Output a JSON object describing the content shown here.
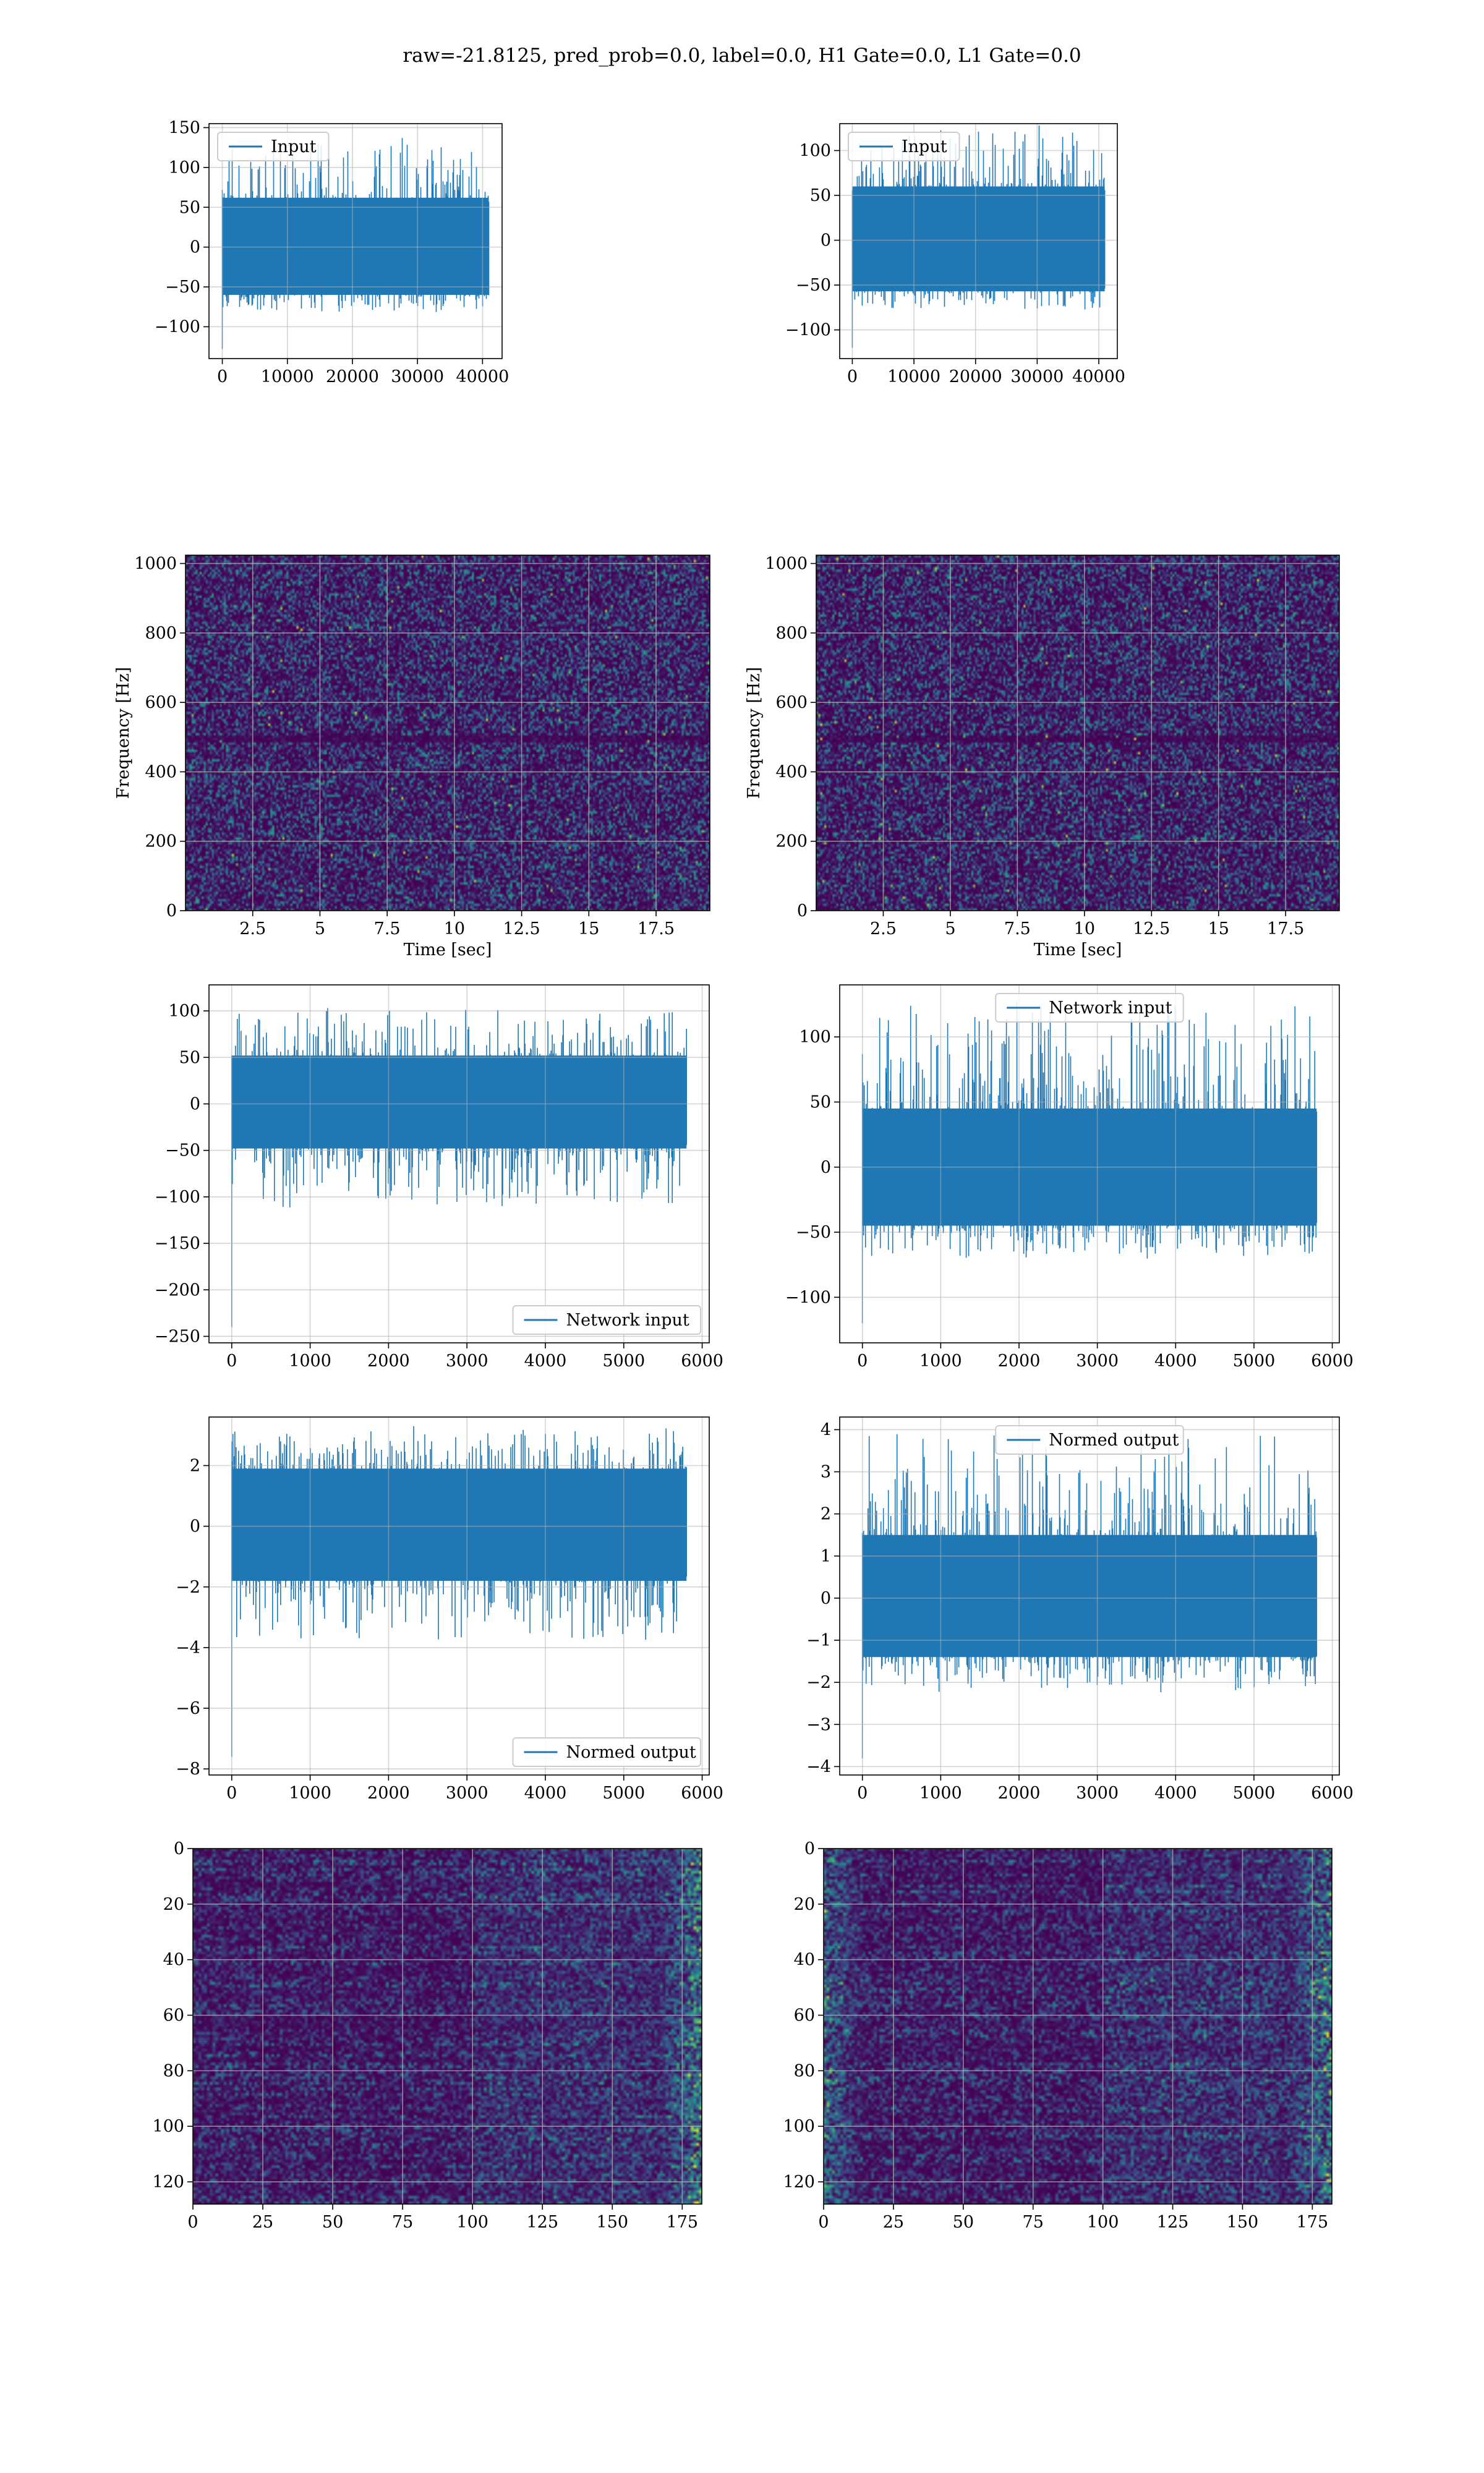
{
  "figure": {
    "suptitle": "raw=-21.8125, pred_prob=0.0, label=0.0, H1 Gate=0.0, L1 Gate=0.0",
    "background": "#ffffff",
    "line_color": "#1f77b4",
    "grid_color": "#b0b0b0",
    "colormap": "viridis"
  },
  "chart_data": [
    {
      "id": "input-h1",
      "type": "line",
      "legend": [
        "Input"
      ],
      "legend_loc": "upper left",
      "xlim": [
        -2048,
        43008
      ],
      "ylim": [
        -140,
        155
      ],
      "xticks": [
        0,
        10000,
        20000,
        30000,
        40000
      ],
      "yticks": [
        -100,
        -50,
        0,
        50,
        100,
        150
      ],
      "signal": {
        "start": 0,
        "end": 40960,
        "bulk": [
          -60,
          62
        ],
        "peak_max": 137,
        "peak_min": -128
      },
      "grid": true
    },
    {
      "id": "input-l1",
      "type": "line",
      "legend": [
        "Input"
      ],
      "legend_loc": "upper left",
      "xlim": [
        -2048,
        43008
      ],
      "ylim": [
        -132,
        130
      ],
      "xticks": [
        0,
        10000,
        20000,
        30000,
        40000
      ],
      "yticks": [
        -100,
        -50,
        0,
        50,
        100
      ],
      "signal": {
        "start": 0,
        "end": 40960,
        "bulk": [
          -57,
          60
        ],
        "peak_max": 128,
        "peak_min": -120
      },
      "grid": true
    },
    {
      "id": "spectrogram-h1",
      "type": "heatmap",
      "xlabel": "Time [sec]",
      "ylabel": "Frequency [Hz]",
      "xlim": [
        0,
        19.5
      ],
      "ylim": [
        0,
        1024
      ],
      "xticks": [
        2.5,
        5.0,
        7.5,
        10.0,
        12.5,
        15.0,
        17.5
      ],
      "yticks": [
        0,
        200,
        400,
        600,
        800,
        1000
      ],
      "dark_band_hz": 500,
      "grid": true
    },
    {
      "id": "spectrogram-l1",
      "type": "heatmap",
      "xlabel": "Time [sec]",
      "ylabel": "Frequency [Hz]",
      "xlim": [
        0,
        19.5
      ],
      "ylim": [
        0,
        1024
      ],
      "xticks": [
        2.5,
        5.0,
        7.5,
        10.0,
        12.5,
        15.0,
        17.5
      ],
      "yticks": [
        0,
        200,
        400,
        600,
        800,
        1000
      ],
      "dark_band_hz": 500,
      "grid": true
    },
    {
      "id": "network-input-h1",
      "type": "line",
      "legend": [
        "Network input"
      ],
      "legend_loc": "lower right",
      "xlim": [
        -290,
        6090
      ],
      "ylim": [
        -257,
        128
      ],
      "xticks": [
        0,
        1000,
        2000,
        3000,
        4000,
        5000,
        6000
      ],
      "yticks": [
        -250,
        -200,
        -150,
        -100,
        -50,
        0,
        50,
        100
      ],
      "signal": {
        "start": 0,
        "end": 5800,
        "bulk": [
          -48,
          52
        ],
        "peak_max": 103,
        "peak_min": -240
      },
      "grid": true
    },
    {
      "id": "network-input-l1",
      "type": "line",
      "legend": [
        "Network input"
      ],
      "legend_loc": "upper center",
      "xlim": [
        -290,
        6090
      ],
      "ylim": [
        -135,
        140
      ],
      "xticks": [
        0,
        1000,
        2000,
        3000,
        4000,
        5000,
        6000
      ],
      "yticks": [
        -100,
        -50,
        0,
        50,
        100
      ],
      "signal": {
        "start": 0,
        "end": 5800,
        "bulk": [
          -45,
          45
        ],
        "peak_max": 127,
        "peak_min": -120
      },
      "grid": true
    },
    {
      "id": "normed-output-h1",
      "type": "line",
      "legend": [
        "Normed output"
      ],
      "legend_loc": "lower right",
      "xlim": [
        -290,
        6090
      ],
      "ylim": [
        -8.2,
        3.6
      ],
      "xticks": [
        0,
        1000,
        2000,
        3000,
        4000,
        5000,
        6000
      ],
      "yticks": [
        -8,
        -6,
        -4,
        -2,
        0,
        2
      ],
      "signal": {
        "start": 0,
        "end": 5800,
        "bulk": [
          -1.8,
          1.9
        ],
        "peak_max": 3.3,
        "peak_min": -7.6
      },
      "grid": true
    },
    {
      "id": "normed-output-l1",
      "type": "line",
      "legend": [
        "Normed output"
      ],
      "legend_loc": "upper center",
      "xlim": [
        -290,
        6090
      ],
      "ylim": [
        -4.2,
        4.3
      ],
      "xticks": [
        0,
        1000,
        2000,
        3000,
        4000,
        5000,
        6000
      ],
      "yticks": [
        -4,
        -3,
        -2,
        -1,
        0,
        1,
        2,
        3,
        4
      ],
      "signal": {
        "start": 0,
        "end": 5800,
        "bulk": [
          -1.4,
          1.5
        ],
        "peak_max": 4.0,
        "peak_min": -3.8
      },
      "grid": true
    },
    {
      "id": "qtransform-h1",
      "type": "heatmap",
      "xlim": [
        0,
        182
      ],
      "ylim": [
        128,
        0
      ],
      "xticks": [
        0,
        25,
        50,
        75,
        100,
        125,
        150,
        175
      ],
      "yticks": [
        0,
        20,
        40,
        60,
        80,
        100,
        120
      ],
      "bright_edge": "right",
      "grid": true
    },
    {
      "id": "qtransform-l1",
      "type": "heatmap",
      "xlim": [
        0,
        182
      ],
      "ylim": [
        128,
        0
      ],
      "xticks": [
        0,
        25,
        50,
        75,
        100,
        125,
        150,
        175
      ],
      "yticks": [
        0,
        20,
        40,
        60,
        80,
        100,
        120
      ],
      "bright_edge": "both",
      "grid": true
    }
  ]
}
